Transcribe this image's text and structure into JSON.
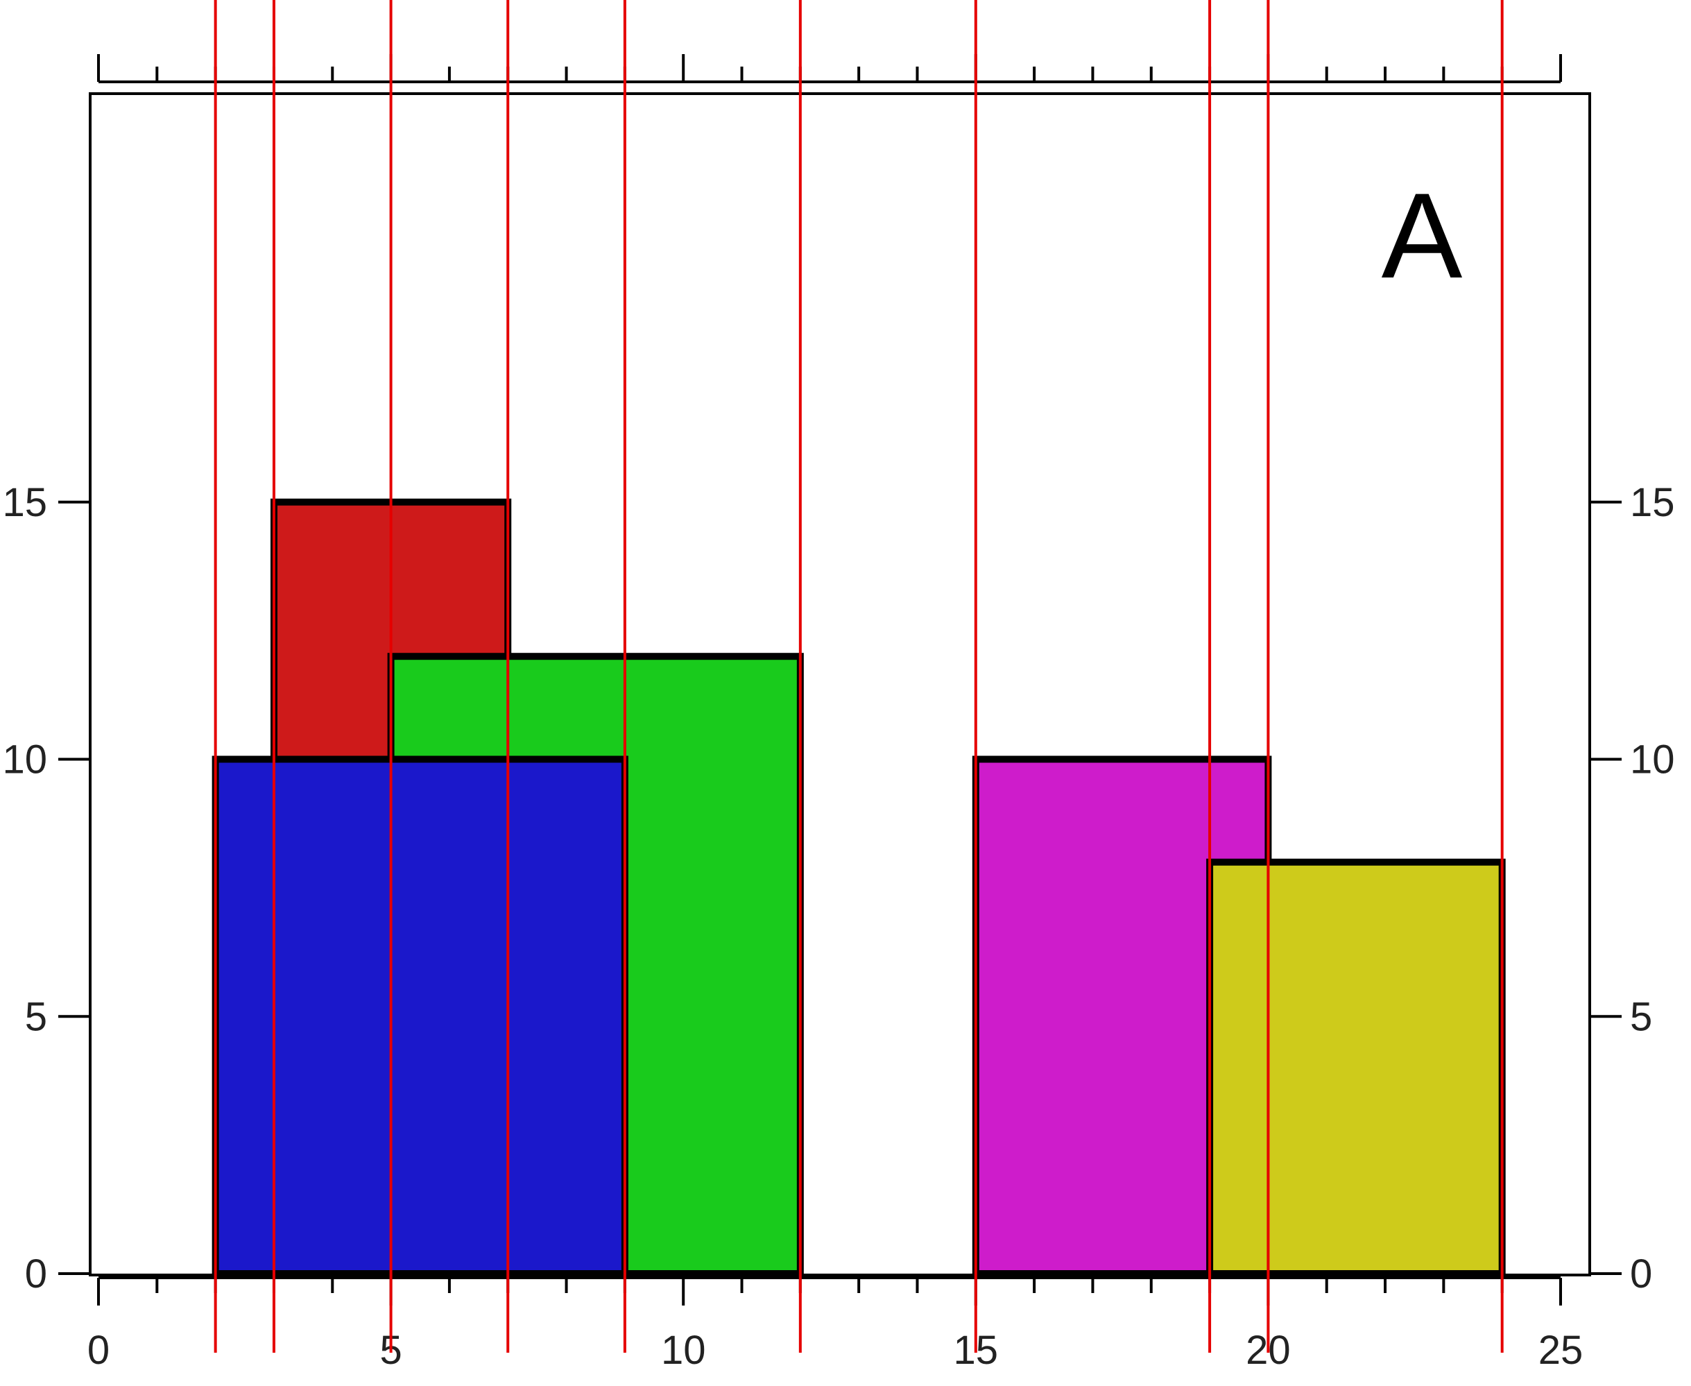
{
  "chart_data": {
    "type": "bar",
    "panel_label": "A",
    "xlim": [
      0,
      25
    ],
    "ylim": [
      0,
      15
    ],
    "x_ticks": [
      "0",
      "5",
      "10",
      "15",
      "20",
      "25"
    ],
    "y_ticks": [
      "0",
      "5",
      "10",
      "15"
    ],
    "grid": false,
    "boxes": [
      {
        "name": "",
        "x_start": 3,
        "x_end": 7,
        "height": 15,
        "color": "#CE1A1A"
      },
      {
        "name": "",
        "x_start": 5,
        "x_end": 12,
        "height": 12,
        "color": "#19CB1C"
      },
      {
        "name": "",
        "x_start": 2,
        "x_end": 9,
        "height": 10,
        "color": "#1B18CB"
      },
      {
        "name": "",
        "x_start": 15,
        "x_end": 20,
        "height": 10,
        "color": "#CE1CCB"
      },
      {
        "name": "",
        "x_start": 19,
        "x_end": 24,
        "height": 8,
        "color": "#CECB1B"
      }
    ],
    "reference_lines_x": [
      2,
      3,
      5,
      7,
      9,
      12,
      15,
      19,
      20,
      24
    ],
    "reference_line_color": "#E50000"
  }
}
